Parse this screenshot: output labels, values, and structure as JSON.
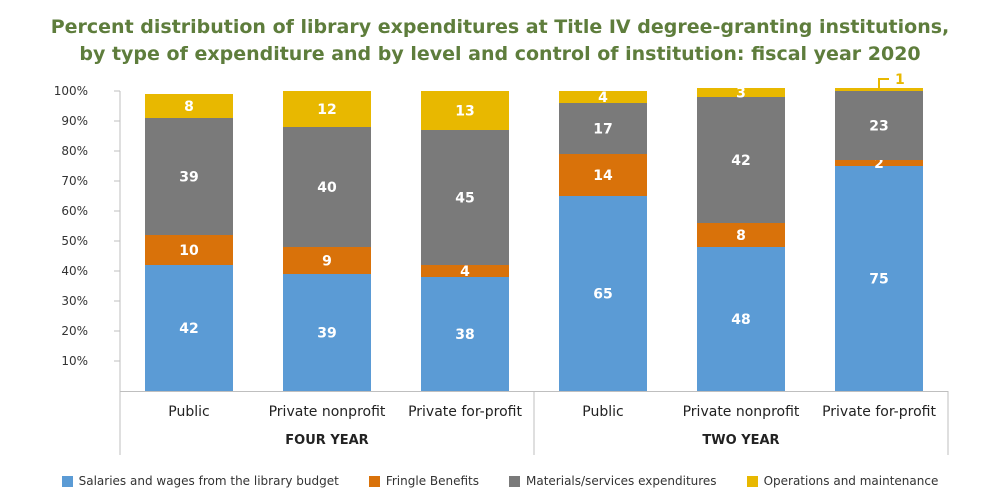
{
  "title_line1": "Percent distribution of library expenditures at Title IV degree-granting institutions,",
  "title_line2": "by type of expenditure and by level and control of institution: fiscal year 2020",
  "chart_data": {
    "type": "bar",
    "stacked": true,
    "title": "Percent distribution of library expenditures at Title IV degree-granting institutions, by type of expenditure and by level and control of institution: fiscal year 2020",
    "xlabel": "",
    "ylabel": "",
    "ylim": [
      0,
      100
    ],
    "yticks": [
      "10%",
      "20%",
      "30%",
      "40%",
      "50%",
      "60%",
      "70%",
      "80%",
      "90%",
      "100%"
    ],
    "groups": [
      {
        "label": "FOUR YEAR",
        "categories": [
          "Public",
          "Private nonprofit",
          "Private for-profit"
        ]
      },
      {
        "label": "TWO YEAR",
        "categories": [
          "Public",
          "Private nonprofit",
          "Private for-profit"
        ]
      }
    ],
    "categories": [
      "Public",
      "Private nonprofit",
      "Private for-profit",
      "Public",
      "Private nonprofit",
      "Private for-profit"
    ],
    "series": [
      {
        "name": "Salaries and wages from the library budget",
        "color": "#5b9bd5",
        "values": [
          42,
          39,
          38,
          65,
          48,
          75
        ]
      },
      {
        "name": "Fringle Benefits",
        "color": "#d9720a",
        "values": [
          10,
          9,
          4,
          14,
          8,
          2
        ]
      },
      {
        "name": "Materials/services expenditures",
        "color": "#7a7a7a",
        "values": [
          39,
          40,
          45,
          17,
          42,
          23
        ]
      },
      {
        "name": "Operations and maintenance",
        "color": "#e8b800",
        "values": [
          8,
          12,
          13,
          4,
          3,
          1
        ]
      }
    ],
    "grid": false,
    "legend": "bottom"
  }
}
